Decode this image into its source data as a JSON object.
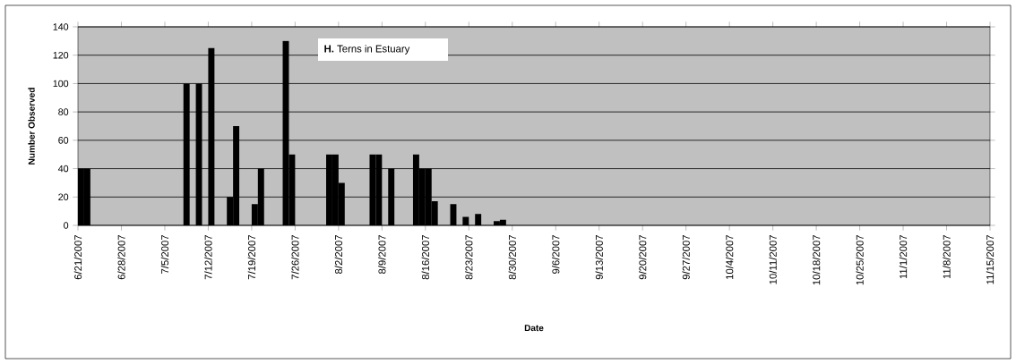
{
  "chart_data": {
    "type": "bar",
    "title": "**H.** Terns in Estuary",
    "xlabel": "Date",
    "ylabel": "Number Observed",
    "x": [
      "2007-06-21",
      "2007-06-22",
      "2007-07-08",
      "2007-07-10",
      "2007-07-12",
      "2007-07-15",
      "2007-07-16",
      "2007-07-19",
      "2007-07-20",
      "2007-07-24",
      "2007-07-25",
      "2007-07-31",
      "2007-08-01",
      "2007-08-02",
      "2007-08-07",
      "2007-08-08",
      "2007-08-10",
      "2007-08-14",
      "2007-08-15",
      "2007-08-16",
      "2007-08-17",
      "2007-08-20",
      "2007-08-22",
      "2007-08-24",
      "2007-08-27",
      "2007-08-28"
    ],
    "values": [
      40,
      40,
      100,
      100,
      125,
      20,
      70,
      15,
      40,
      130,
      50,
      50,
      50,
      30,
      50,
      50,
      40,
      50,
      40,
      40,
      17,
      15,
      6,
      8,
      3,
      4
    ],
    "color": "#000000",
    "xlim": [
      "2007-06-21",
      "2007-11-15"
    ],
    "xticks": [
      {
        "value": "2007-06-21",
        "label": "6/21/2007"
      },
      {
        "value": "2007-06-28",
        "label": "6/28/2007"
      },
      {
        "value": "2007-07-05",
        "label": "7/5/2007"
      },
      {
        "value": "2007-07-12",
        "label": "7/12/2007"
      },
      {
        "value": "2007-07-19",
        "label": "7/19/2007"
      },
      {
        "value": "2007-07-26",
        "label": "7/26/2007"
      },
      {
        "value": "2007-08-02",
        "label": "8/2/2007"
      },
      {
        "value": "2007-08-09",
        "label": "8/9/2007"
      },
      {
        "value": "2007-08-16",
        "label": "8/16/2007"
      },
      {
        "value": "2007-08-23",
        "label": "8/23/2007"
      },
      {
        "value": "2007-08-30",
        "label": "8/30/2007"
      },
      {
        "value": "2007-09-06",
        "label": "9/6/2007"
      },
      {
        "value": "2007-09-13",
        "label": "9/13/2007"
      },
      {
        "value": "2007-09-20",
        "label": "9/20/2007"
      },
      {
        "value": "2007-09-27",
        "label": "9/27/2007"
      },
      {
        "value": "2007-10-04",
        "label": "10/4/2007"
      },
      {
        "value": "2007-10-11",
        "label": "10/11/2007"
      },
      {
        "value": "2007-10-18",
        "label": "10/18/2007"
      },
      {
        "value": "2007-10-25",
        "label": "10/25/2007"
      },
      {
        "value": "2007-11-01",
        "label": "11/1/2007"
      },
      {
        "value": "2007-11-08",
        "label": "11/8/2007"
      },
      {
        "value": "2007-11-15",
        "label": "11/15/2007"
      }
    ],
    "ylim": [
      0,
      140
    ],
    "yticks": [
      0,
      20,
      40,
      60,
      80,
      100,
      120,
      140
    ],
    "grid": "y"
  }
}
